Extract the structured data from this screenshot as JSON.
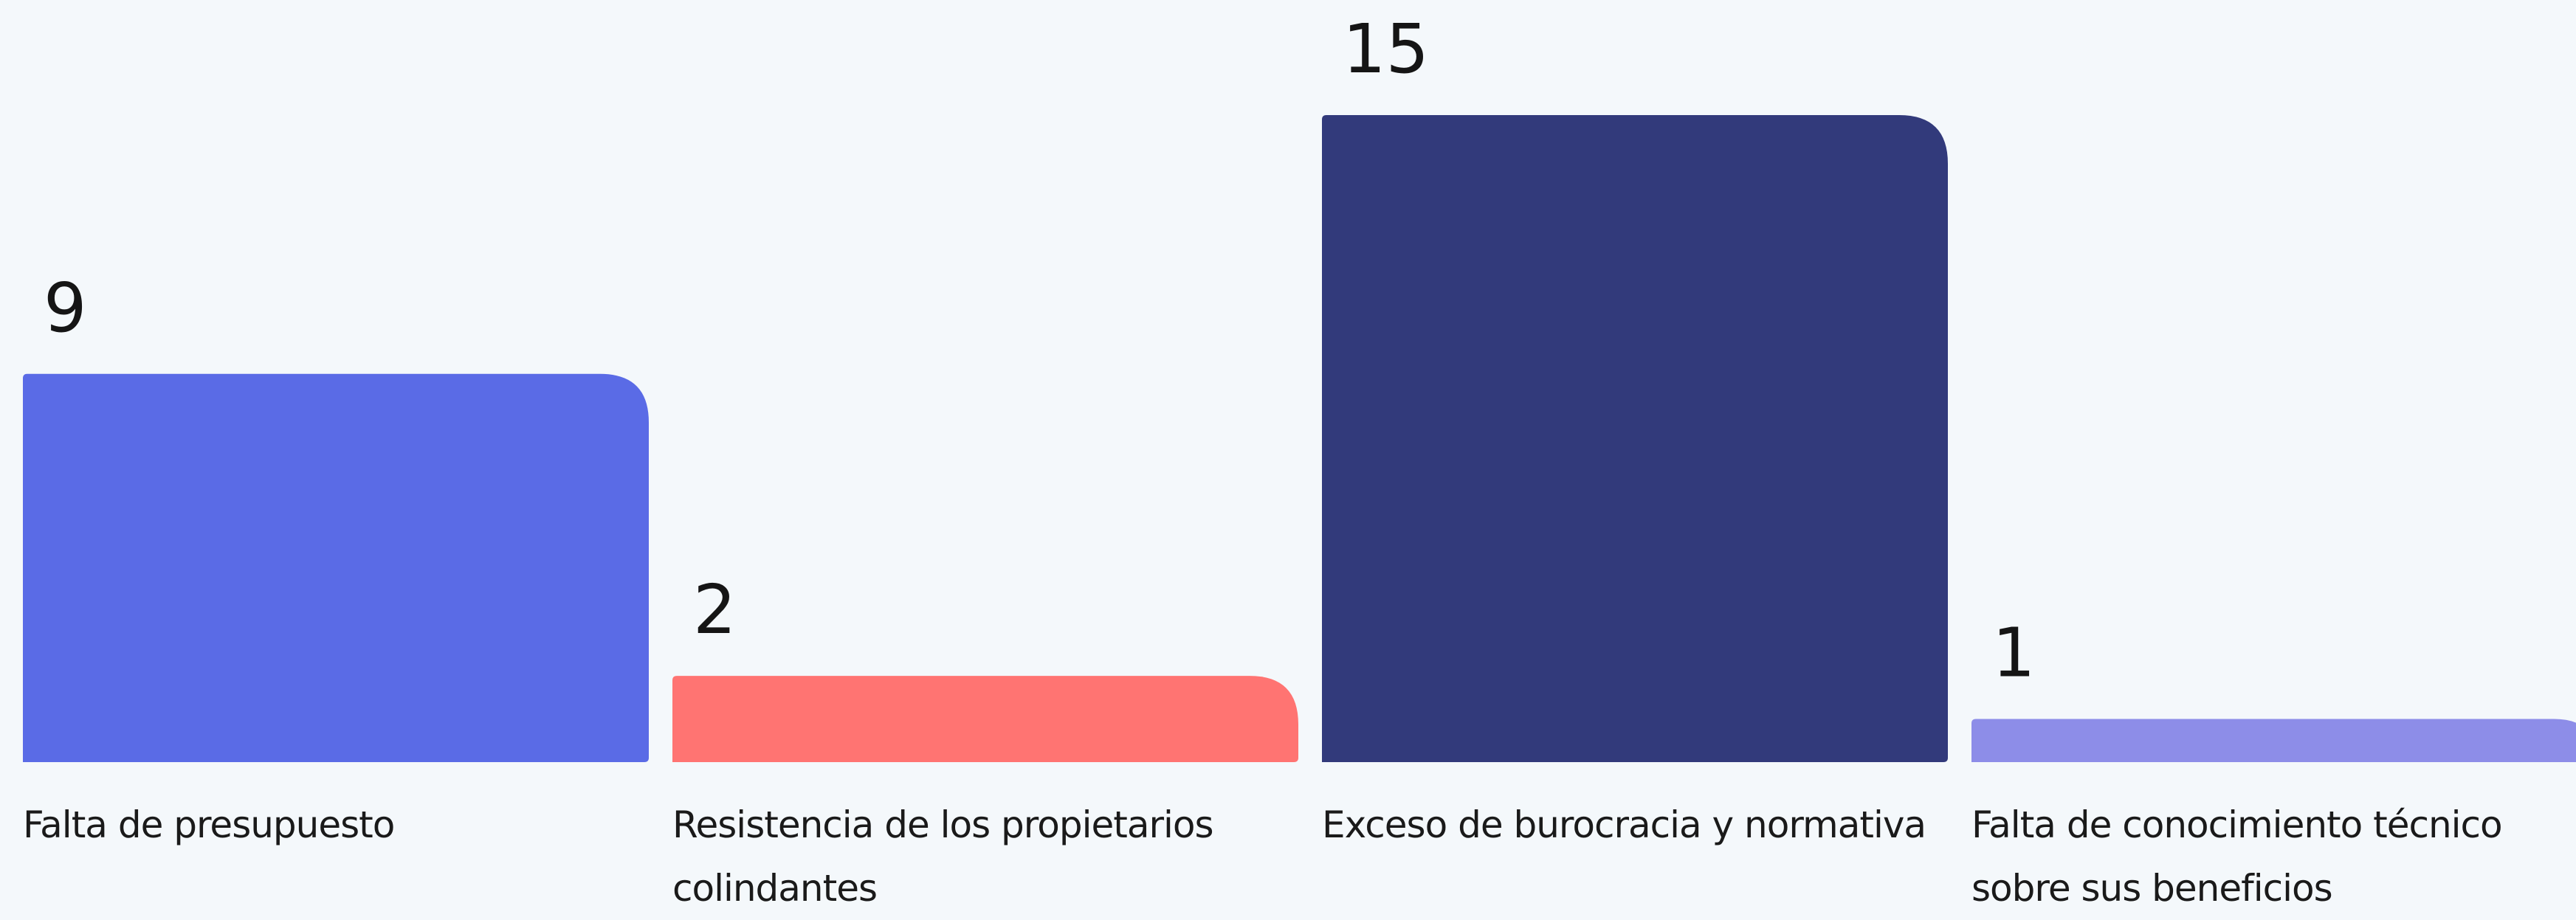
{
  "chart_data": {
    "type": "bar",
    "categories": [
      "Falta de presupuesto",
      "Resistencia de los propietarios colindantes",
      "Exceso de burocracia y normativa",
      "Falta de conocimiento técnico sobre sus beneficios"
    ],
    "values": [
      9,
      2,
      15,
      1
    ],
    "colors": [
      "#5a6be6",
      "#ff7472",
      "#323a7b",
      "#8d8de8"
    ]
  }
}
